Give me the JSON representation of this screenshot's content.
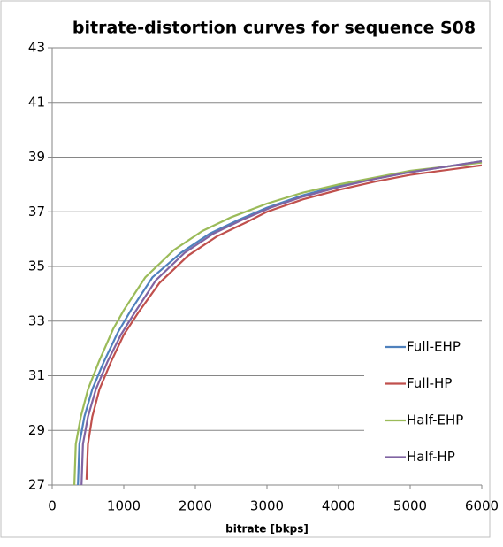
{
  "chart_data": {
    "type": "line",
    "title": "bitrate-distortion curves for sequence S08",
    "x_label": "bitrate [bkps]",
    "xlim": [
      0,
      6000
    ],
    "xticks": [
      0,
      1000,
      2000,
      3000,
      4000,
      5000,
      6000
    ],
    "ylim": [
      27,
      43
    ],
    "yticks": [
      27,
      29,
      31,
      33,
      35,
      37,
      39,
      41,
      43
    ],
    "grid": true,
    "legend": "right",
    "series": [
      {
        "name": "Full-EHP",
        "color": "#4f81bd",
        "x": [
          360,
          380,
          450,
          560,
          720,
          920,
          1100,
          1400,
          1800,
          2200,
          2600,
          3000,
          3500,
          4000,
          4500,
          5000,
          6000
        ],
        "values": [
          27,
          28.5,
          29.5,
          30.5,
          31.5,
          32.6,
          33.4,
          34.6,
          35.5,
          36.2,
          36.7,
          37.15,
          37.6,
          37.95,
          38.2,
          38.45,
          38.85
        ]
      },
      {
        "name": "Full-HP",
        "color": "#c0504d",
        "x": [
          480,
          500,
          560,
          660,
          820,
          1000,
          1200,
          1500,
          1900,
          2300,
          2700,
          3000,
          3500,
          4000,
          4500,
          5000,
          6000
        ],
        "values": [
          27.2,
          28.5,
          29.5,
          30.5,
          31.5,
          32.5,
          33.3,
          34.4,
          35.4,
          36.1,
          36.6,
          37.0,
          37.45,
          37.8,
          38.1,
          38.35,
          38.7
        ]
      },
      {
        "name": "Half-EHP",
        "color": "#9bbb59",
        "x": [
          310,
          330,
          400,
          500,
          650,
          850,
          1000,
          1300,
          1700,
          2100,
          2500,
          3000,
          3500,
          4000,
          4500,
          5000,
          6000
        ],
        "values": [
          27,
          28.5,
          29.5,
          30.5,
          31.5,
          32.7,
          33.4,
          34.6,
          35.6,
          36.3,
          36.8,
          37.3,
          37.7,
          38.0,
          38.25,
          38.5,
          38.8
        ]
      },
      {
        "name": "Half-HP",
        "color": "#8064a2",
        "x": [
          410,
          430,
          500,
          610,
          770,
          960,
          1150,
          1450,
          1850,
          2250,
          2650,
          3050,
          3500,
          4000,
          4500,
          5000,
          6000
        ],
        "values": [
          27,
          28.5,
          29.5,
          30.5,
          31.5,
          32.5,
          33.3,
          34.5,
          35.5,
          36.2,
          36.7,
          37.15,
          37.55,
          37.9,
          38.2,
          38.45,
          38.85
        ]
      }
    ]
  }
}
